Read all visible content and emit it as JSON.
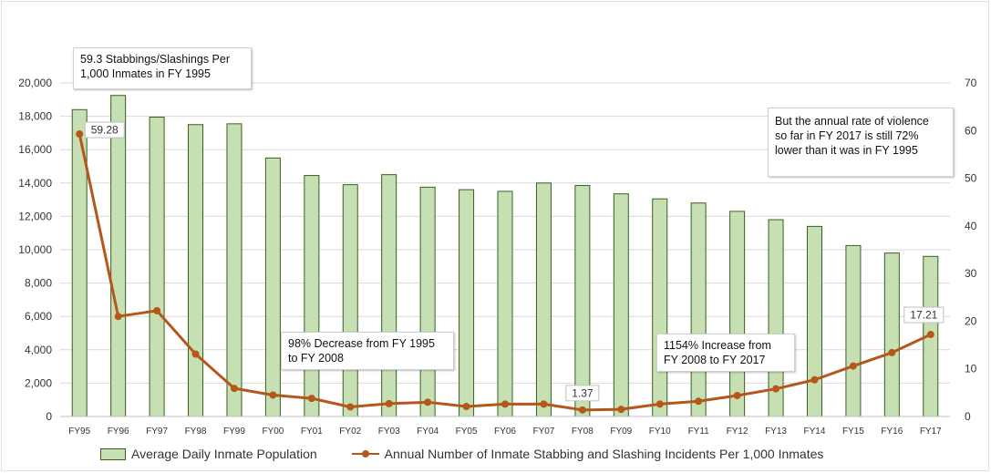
{
  "chart_data": {
    "type": "bar",
    "categories": [
      "FY95",
      "FY96",
      "FY97",
      "FY98",
      "FY99",
      "FY00",
      "FY01",
      "FY02",
      "FY03",
      "FY04",
      "FY05",
      "FY06",
      "FY07",
      "FY08",
      "FY09",
      "FY10",
      "FY11",
      "FY12",
      "FY13",
      "FY14",
      "FY15",
      "FY16",
      "FY17"
    ],
    "series": [
      {
        "name": "Average Daily Inmate Population",
        "type": "bar",
        "axis": "left",
        "color": "#c6e0b4",
        "edge_color": "#3a5f1e",
        "values": [
          18400,
          19250,
          17950,
          17500,
          17550,
          15500,
          14450,
          13900,
          14500,
          13750,
          13600,
          13500,
          14000,
          13850,
          13350,
          13050,
          12800,
          12300,
          11800,
          11400,
          10250,
          9800,
          9600
        ]
      },
      {
        "name": "Annual Number of Inmate Stabbing and Slashing Incidents Per 1,000 Inmates",
        "type": "line",
        "axis": "right",
        "color": "#b5571b",
        "values": [
          59.28,
          21.0,
          22.2,
          13.1,
          5.9,
          4.5,
          3.8,
          2.0,
          2.7,
          3.0,
          2.1,
          2.6,
          2.6,
          1.37,
          1.5,
          2.6,
          3.2,
          4.4,
          5.8,
          7.7,
          10.6,
          13.4,
          17.21
        ]
      }
    ],
    "y_left": {
      "min": 0,
      "max": 20000,
      "ticks": [
        "0",
        "2,000",
        "4,000",
        "6,000",
        "8,000",
        "10,000",
        "12,000",
        "14,000",
        "16,000",
        "18,000",
        "20,000"
      ]
    },
    "y_right": {
      "min": 0,
      "max": 70,
      "ticks": [
        "0",
        "10",
        "20",
        "30",
        "40",
        "50",
        "60",
        "70"
      ]
    },
    "grid": true,
    "legend": "bottom",
    "data_labels": [
      {
        "category": "FY95",
        "text": "59.28"
      },
      {
        "category": "FY08",
        "text": "1.37"
      },
      {
        "category": "FY17",
        "text": "17.21"
      }
    ],
    "annotations": [
      {
        "id": "a1",
        "lines": [
          "59.3 Stabbings/Slashings Per",
          "1,000 Inmates in FY 1995"
        ]
      },
      {
        "id": "a2",
        "lines": [
          "98% Decrease from FY 1995",
          "to FY 2008"
        ]
      },
      {
        "id": "a3",
        "lines": [
          "1154% Increase from",
          "FY 2008 to FY 2017"
        ]
      },
      {
        "id": "a4",
        "lines": [
          "But the annual rate of violence",
          "so far in FY 2017 is still 72%",
          "lower than it was in FY 1995"
        ]
      }
    ]
  }
}
